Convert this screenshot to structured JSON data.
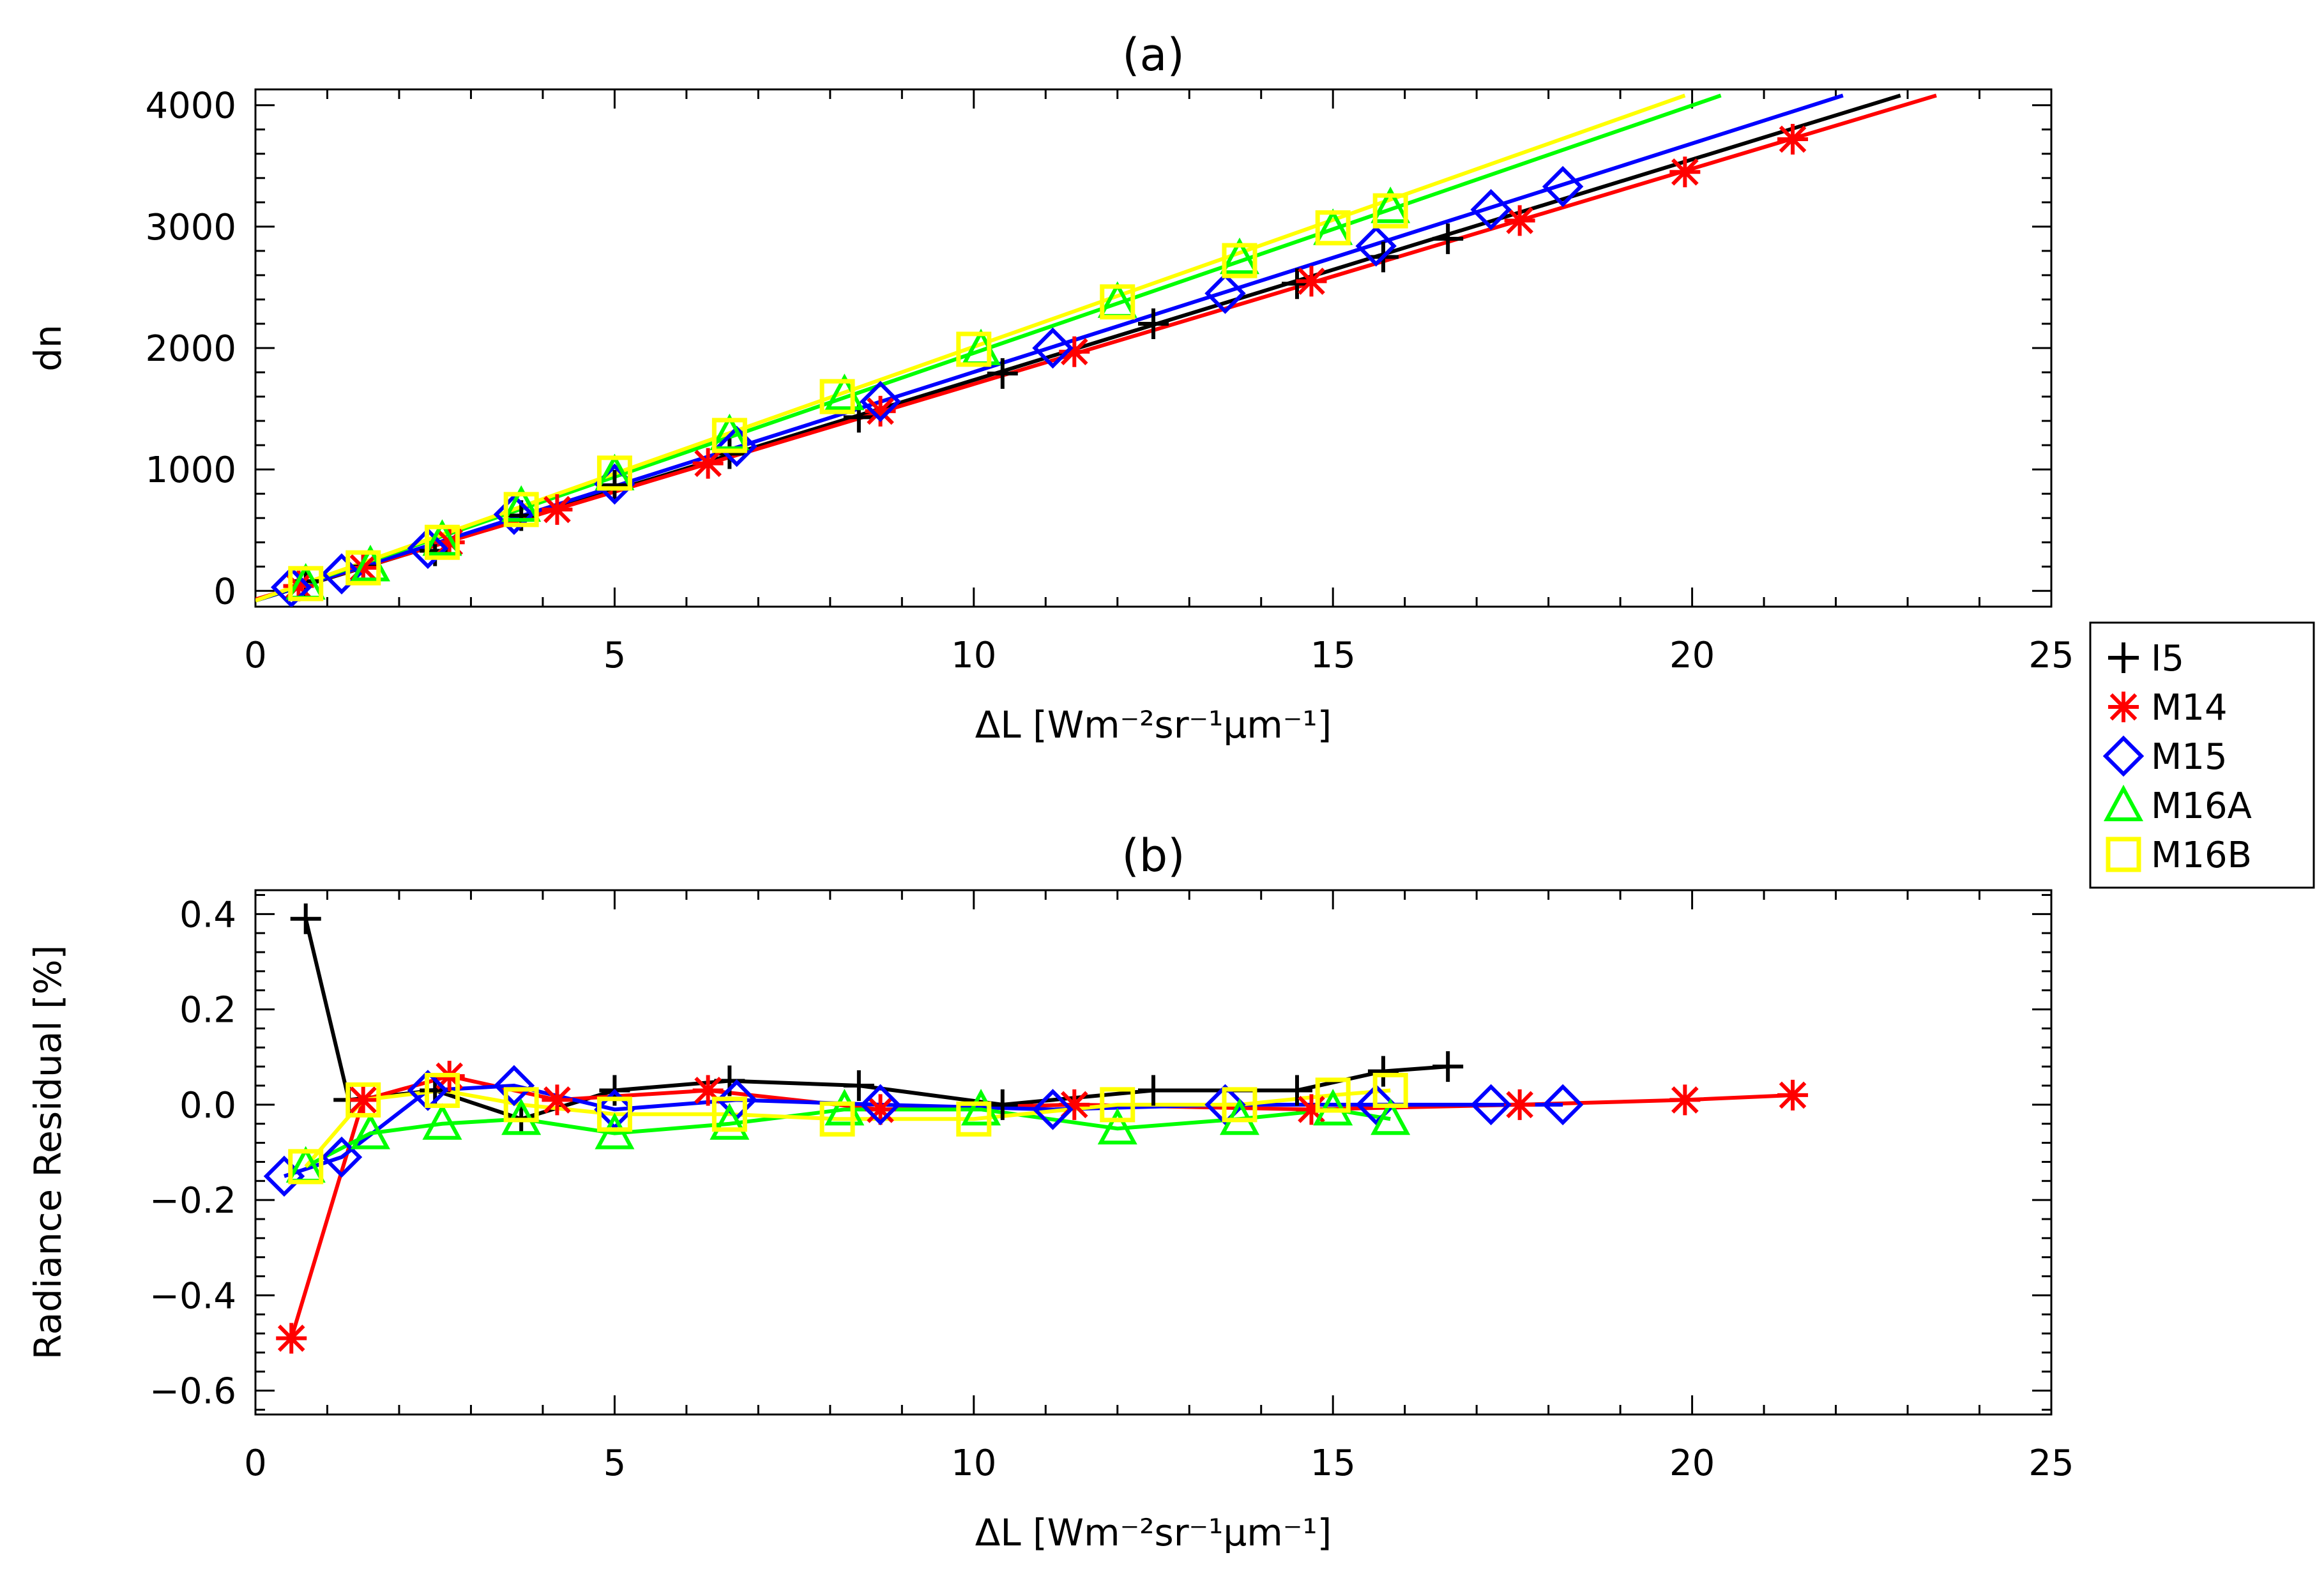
{
  "chart_data": [
    {
      "type": "line",
      "title": "(a)",
      "xlabel": "ΔL [Wm⁻²sr⁻¹μm⁻¹]",
      "ylabel": "dn",
      "xlim": [
        0,
        25
      ],
      "ylim": [
        -130,
        4130
      ],
      "xticks": [
        0,
        5,
        10,
        15,
        20,
        25
      ],
      "xtick_labels": [
        "0",
        "5",
        "10",
        "15",
        "20",
        "25"
      ],
      "yticks": [
        0,
        1000,
        2000,
        3000,
        4000
      ],
      "ytick_labels": [
        "0",
        "1000",
        "2000",
        "3000",
        "4000"
      ],
      "grid": false,
      "series": [
        {
          "name": "I5",
          "marker": "plus",
          "color": "#000000",
          "points": [
            [
              0.7,
              80
            ],
            [
              1.5,
              200
            ],
            [
              2.5,
              330
            ],
            [
              3.7,
              620
            ],
            [
              5.0,
              870
            ],
            [
              6.6,
              1130
            ],
            [
              8.4,
              1430
            ],
            [
              10.4,
              1790
            ],
            [
              12.5,
              2200
            ],
            [
              14.5,
              2530
            ],
            [
              15.7,
              2750
            ],
            [
              16.6,
              2900
            ]
          ],
          "fit": [
            [
              0,
              -80
            ],
            [
              22.9,
              4080
            ]
          ]
        },
        {
          "name": "M14",
          "marker": "asterisk",
          "color": "#ff0000",
          "points": [
            [
              0.6,
              40
            ],
            [
              1.5,
              190
            ],
            [
              2.7,
              400
            ],
            [
              4.2,
              670
            ],
            [
              6.3,
              1050
            ],
            [
              8.7,
              1480
            ],
            [
              11.4,
              1970
            ],
            [
              14.7,
              2550
            ],
            [
              17.6,
              3050
            ],
            [
              19.9,
              3450
            ],
            [
              21.4,
              3720
            ]
          ],
          "fit": [
            [
              0,
              -70
            ],
            [
              23.4,
              4080
            ]
          ]
        },
        {
          "name": "M15",
          "marker": "diamond",
          "color": "#0000ff",
          "points": [
            [
              0.5,
              30
            ],
            [
              1.2,
              140
            ],
            [
              2.4,
              350
            ],
            [
              3.6,
              630
            ],
            [
              5.0,
              880
            ],
            [
              6.7,
              1190
            ],
            [
              8.7,
              1560
            ],
            [
              11.1,
              2000
            ],
            [
              13.5,
              2450
            ],
            [
              15.6,
              2840
            ],
            [
              17.2,
              3140
            ],
            [
              18.2,
              3330
            ]
          ],
          "fit": [
            [
              0,
              -80
            ],
            [
              22.1,
              4080
            ]
          ]
        },
        {
          "name": "M16A",
          "marker": "triangle",
          "color": "#00ff00",
          "points": [
            [
              0.7,
              60
            ],
            [
              1.6,
              210
            ],
            [
              2.6,
              420
            ],
            [
              3.7,
              700
            ],
            [
              5.0,
              960
            ],
            [
              6.6,
              1290
            ],
            [
              8.2,
              1620
            ],
            [
              10.1,
              1990
            ],
            [
              12.0,
              2380
            ],
            [
              13.7,
              2740
            ],
            [
              15.0,
              2980
            ],
            [
              15.8,
              3160
            ]
          ],
          "fit": [
            [
              0,
              -80
            ],
            [
              20.4,
              4080
            ]
          ]
        },
        {
          "name": "M16B",
          "marker": "square",
          "color": "#ffff00",
          "points": [
            [
              0.7,
              60
            ],
            [
              1.5,
              190
            ],
            [
              2.6,
              400
            ],
            [
              3.7,
              670
            ],
            [
              5.0,
              970
            ],
            [
              6.6,
              1280
            ],
            [
              8.1,
              1600
            ],
            [
              10.0,
              1990
            ],
            [
              12.0,
              2380
            ],
            [
              13.7,
              2720
            ],
            [
              15.0,
              2990
            ],
            [
              15.8,
              3130
            ]
          ],
          "fit": [
            [
              0,
              -80
            ],
            [
              19.9,
              4080
            ]
          ]
        }
      ]
    },
    {
      "type": "line",
      "title": "(b)",
      "xlabel": "ΔL [Wm⁻²sr⁻¹μm⁻¹]",
      "ylabel": "Radiance Residual [%]",
      "xlim": [
        0,
        25
      ],
      "ylim": [
        -0.65,
        0.45
      ],
      "xticks": [
        0,
        5,
        10,
        15,
        20,
        25
      ],
      "xtick_labels": [
        "0",
        "5",
        "10",
        "15",
        "20",
        "25"
      ],
      "yticks": [
        0.4,
        0.2,
        0.0,
        -0.2,
        -0.4,
        -0.6
      ],
      "ytick_labels": [
        "0.4",
        "0.2",
        "0.0",
        "−0.2",
        "−0.4",
        "−0.6"
      ],
      "grid": false,
      "series": [
        {
          "name": "I5",
          "marker": "plus",
          "color": "#000000",
          "points": [
            [
              0.7,
              0.39
            ],
            [
              1.3,
              0.01
            ],
            [
              2.5,
              0.03
            ],
            [
              3.7,
              -0.03
            ],
            [
              5.0,
              0.03
            ],
            [
              6.6,
              0.05
            ],
            [
              8.4,
              0.04
            ],
            [
              10.4,
              0.0
            ],
            [
              12.5,
              0.03
            ],
            [
              14.5,
              0.03
            ],
            [
              15.7,
              0.07
            ],
            [
              16.6,
              0.08
            ]
          ]
        },
        {
          "name": "M14",
          "marker": "asterisk",
          "color": "#ff0000",
          "points": [
            [
              0.5,
              -0.49
            ],
            [
              1.5,
              0.01
            ],
            [
              2.7,
              0.06
            ],
            [
              4.2,
              0.01
            ],
            [
              6.3,
              0.03
            ],
            [
              8.7,
              -0.01
            ],
            [
              11.4,
              0.0
            ],
            [
              14.7,
              -0.01
            ],
            [
              17.6,
              0.0
            ],
            [
              19.9,
              0.01
            ],
            [
              21.4,
              0.02
            ]
          ]
        },
        {
          "name": "M15",
          "marker": "diamond",
          "color": "#0000ff",
          "points": [
            [
              0.4,
              -0.15
            ],
            [
              1.2,
              -0.11
            ],
            [
              2.4,
              0.03
            ],
            [
              3.6,
              0.04
            ],
            [
              5.0,
              -0.01
            ],
            [
              6.7,
              0.01
            ],
            [
              8.7,
              0.0
            ],
            [
              11.1,
              -0.01
            ],
            [
              13.5,
              0.0
            ],
            [
              15.6,
              0.0
            ],
            [
              17.2,
              0.0
            ],
            [
              18.2,
              0.0
            ]
          ]
        },
        {
          "name": "M16A",
          "marker": "triangle",
          "color": "#00ff00",
          "points": [
            [
              0.7,
              -0.13
            ],
            [
              1.6,
              -0.06
            ],
            [
              2.6,
              -0.04
            ],
            [
              3.7,
              -0.03
            ],
            [
              5.0,
              -0.06
            ],
            [
              6.6,
              -0.04
            ],
            [
              8.2,
              -0.01
            ],
            [
              10.1,
              -0.01
            ],
            [
              12.0,
              -0.05
            ],
            [
              13.7,
              -0.03
            ],
            [
              15.0,
              -0.01
            ],
            [
              15.8,
              -0.03
            ]
          ]
        },
        {
          "name": "M16B",
          "marker": "square",
          "color": "#ffff00",
          "points": [
            [
              0.7,
              -0.13
            ],
            [
              1.5,
              0.01
            ],
            [
              2.6,
              0.03
            ],
            [
              3.7,
              0.0
            ],
            [
              5.0,
              -0.02
            ],
            [
              6.6,
              -0.02
            ],
            [
              8.1,
              -0.03
            ],
            [
              10.0,
              -0.03
            ],
            [
              12.0,
              0.0
            ],
            [
              13.7,
              0.0
            ],
            [
              15.0,
              0.02
            ],
            [
              15.8,
              0.03
            ]
          ]
        }
      ]
    }
  ],
  "legend": {
    "placement": "right, between panels",
    "items": [
      {
        "label": "I5",
        "marker": "plus",
        "color": "#000000"
      },
      {
        "label": "M14",
        "marker": "asterisk",
        "color": "#ff0000"
      },
      {
        "label": "M15",
        "marker": "diamond",
        "color": "#0000ff"
      },
      {
        "label": "M16A",
        "marker": "triangle",
        "color": "#00ff00"
      },
      {
        "label": "M16B",
        "marker": "square",
        "color": "#ffff00"
      }
    ]
  }
}
